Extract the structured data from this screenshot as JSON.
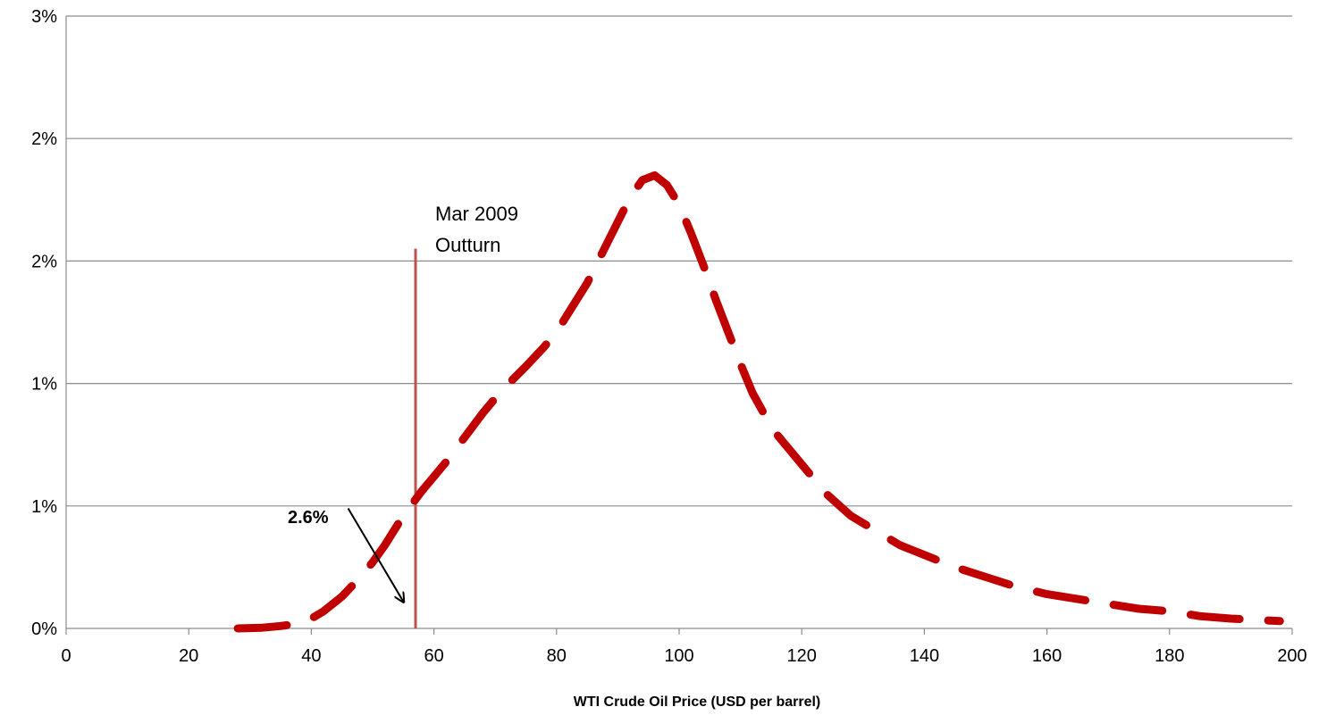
{
  "chart_data": {
    "type": "line",
    "title": "",
    "xlabel": "WTI Crude Oil Price (USD per barrel)",
    "ylabel": "",
    "xlim": [
      0,
      200
    ],
    "ylim": [
      0,
      0.025
    ],
    "x_ticks": [
      0,
      20,
      40,
      60,
      80,
      100,
      120,
      140,
      160,
      180,
      200
    ],
    "x_tick_labels": [
      "0",
      "20",
      "40",
      "60",
      "80",
      "100",
      "120",
      "140",
      "160",
      "180",
      "200"
    ],
    "y_ticks": [
      0,
      0.005,
      0.01,
      0.015,
      0.02,
      0.025
    ],
    "y_tick_labels": [
      "0%",
      "1%",
      "1%",
      "2%",
      "2%",
      "3%"
    ],
    "grid": true,
    "legend": "none",
    "series": [
      {
        "color": "#C00000",
        "style": "dashed",
        "x": [
          28,
          32,
          35,
          38,
          40,
          42,
          45,
          48,
          50,
          52,
          55,
          58,
          60,
          62,
          65,
          68,
          70,
          73,
          75,
          78,
          80,
          82,
          85,
          88,
          90,
          92,
          94,
          96,
          98,
          100,
          102,
          104,
          106,
          108,
          110,
          112,
          114,
          116,
          118,
          120,
          124,
          128,
          132,
          136,
          140,
          145,
          150,
          155,
          160,
          165,
          170,
          175,
          180,
          185,
          190,
          198
        ],
        "y": [
          0.0,
          3e-05,
          0.0001,
          0.0002,
          0.0004,
          0.0007,
          0.0013,
          0.0021,
          0.0027,
          0.0034,
          0.0046,
          0.0056,
          0.0062,
          0.0068,
          0.0078,
          0.0088,
          0.0094,
          0.0102,
          0.0107,
          0.0115,
          0.0121,
          0.0129,
          0.0141,
          0.0156,
          0.0166,
          0.0176,
          0.0183,
          0.0185,
          0.0181,
          0.0173,
          0.0161,
          0.0148,
          0.0134,
          0.0121,
          0.0108,
          0.0096,
          0.0087,
          0.0079,
          0.0073,
          0.0067,
          0.0055,
          0.0046,
          0.004,
          0.0034,
          0.003,
          0.0025,
          0.0021,
          0.0017,
          0.0014,
          0.0012,
          0.001,
          0.0008,
          0.0007,
          0.0005,
          0.0004,
          0.0003
        ]
      }
    ],
    "reference_line": {
      "x": 57,
      "y_top": 0.0155,
      "color": "#C0504D",
      "label_lines": [
        "Mar 2009",
        "Outturn"
      ]
    },
    "annotation": {
      "text": "2.6%",
      "arrow_from": [
        46,
        0.0049
      ],
      "arrow_to": [
        55,
        0.0011
      ]
    }
  }
}
